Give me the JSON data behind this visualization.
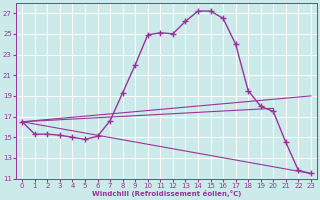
{
  "background_color": "#cdeaeb",
  "line_color": "#993399",
  "grid_color": "#ffffff",
  "xlim": [
    -0.5,
    23.5
  ],
  "ylim": [
    11,
    28
  ],
  "yticks": [
    11,
    13,
    15,
    17,
    19,
    21,
    23,
    25,
    27
  ],
  "xticks": [
    0,
    1,
    2,
    3,
    4,
    5,
    6,
    7,
    8,
    9,
    10,
    11,
    12,
    13,
    14,
    15,
    16,
    17,
    18,
    19,
    20,
    21,
    22,
    23
  ],
  "xlabel": "Windchill (Refroidissement éolien,°C)",
  "main_curve_x": [
    0,
    1,
    2,
    3,
    4,
    5,
    6,
    7,
    8,
    9,
    10,
    11,
    12,
    13,
    14,
    15,
    16,
    17,
    18,
    19,
    20,
    21,
    22,
    23
  ],
  "main_curve_y": [
    16.5,
    15.3,
    15.3,
    15.2,
    15.0,
    14.8,
    15.1,
    16.6,
    19.3,
    22.0,
    24.9,
    25.1,
    25.0,
    26.2,
    27.2,
    27.2,
    26.5,
    24.0,
    19.5,
    18.0,
    17.5,
    14.5,
    11.8,
    11.5
  ],
  "line1_x": [
    0,
    23
  ],
  "line1_y": [
    16.5,
    19.0
  ],
  "line2_x": [
    0,
    20
  ],
  "line2_y": [
    16.5,
    17.8
  ],
  "line3_x": [
    0,
    23
  ],
  "line3_y": [
    16.5,
    11.5
  ]
}
